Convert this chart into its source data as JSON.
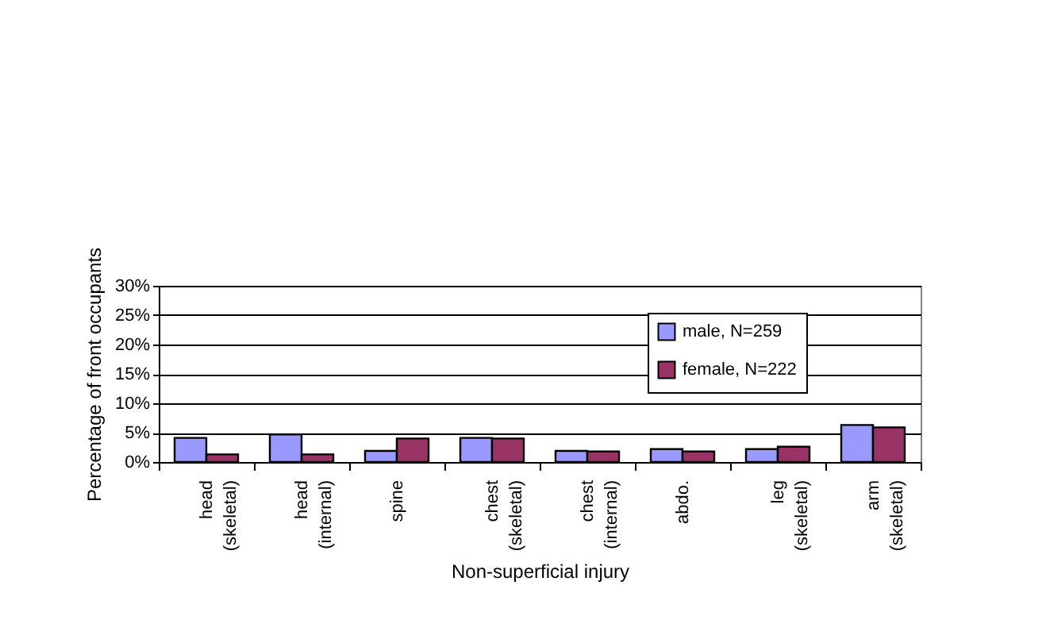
{
  "chart_data": {
    "type": "bar",
    "xlabel": "Non-superficial injury",
    "ylabel": "Percentage of front occupants",
    "categories": [
      "head\n(skeletal)",
      "head\n(internal)",
      "spine",
      "chest\n(skeletal)",
      "chest\n(internal)",
      "abdo.",
      "leg\n(skeletal)",
      "arm\n(skeletal)"
    ],
    "series": [
      {
        "name": "male, N=259",
        "color": "#9999ff",
        "values": [
          4.1,
          4.7,
          1.9,
          4.1,
          1.9,
          2.2,
          2.2,
          6.3
        ]
      },
      {
        "name": "female, N=222",
        "color": "#993366",
        "values": [
          1.3,
          1.3,
          4.0,
          4.0,
          1.8,
          1.8,
          2.6,
          5.9
        ]
      }
    ],
    "ylim": [
      0,
      30
    ],
    "yticks": [
      {
        "value": 0,
        "label": "0%"
      },
      {
        "value": 5,
        "label": "5%"
      },
      {
        "value": 10,
        "label": "10%"
      },
      {
        "value": 15,
        "label": "15%"
      },
      {
        "value": 20,
        "label": "20%"
      },
      {
        "value": 25,
        "label": "25%"
      },
      {
        "value": 30,
        "label": "30%"
      }
    ],
    "grid": "y",
    "legend": "top right"
  }
}
